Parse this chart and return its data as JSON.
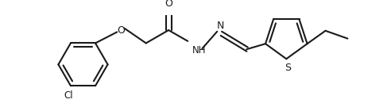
{
  "line_color": "#1a1a1a",
  "bg_color": "#ffffff",
  "line_width": 1.5,
  "fig_width": 4.92,
  "fig_height": 1.4,
  "dpi": 100,
  "xlim": [
    0,
    4.92
  ],
  "ylim": [
    0,
    1.4
  ]
}
